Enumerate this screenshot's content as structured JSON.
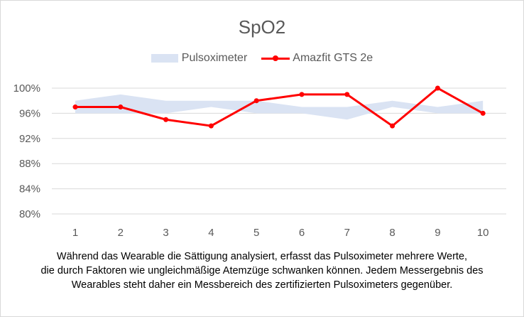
{
  "chart_data": {
    "type": "line",
    "title": "SpO2",
    "categories": [
      "1",
      "2",
      "3",
      "4",
      "5",
      "6",
      "7",
      "8",
      "9",
      "10"
    ],
    "yticks": [
      "80%",
      "84%",
      "88%",
      "92%",
      "96%",
      "100%"
    ],
    "ylim": [
      80,
      100
    ],
    "grid": true,
    "legend_position": "top",
    "series": [
      {
        "name": "Pulsoximeter",
        "kind": "range-area",
        "color": "#dae3f3",
        "low": [
          96,
          96,
          96,
          97,
          96,
          96,
          95,
          97,
          96,
          96
        ],
        "high": [
          98,
          99,
          98,
          98,
          98,
          97,
          97,
          98,
          97,
          98
        ]
      },
      {
        "name": "Amazfit GTS 2e",
        "kind": "line",
        "color": "#ff0000",
        "values": [
          97,
          97,
          95,
          94,
          98,
          99,
          99,
          94,
          100,
          96
        ]
      }
    ]
  },
  "caption": [
    "Während das Wearable die Sättigung analysiert, erfasst das Pulsoximeter mehrere Werte,",
    "die durch Faktoren wie ungleichmäßige Atemzüge schwanken können. Jedem Messergebnis des",
    "Wearables steht daher ein Messbereich des zertifizierten Pulsoximeters gegenüber."
  ]
}
